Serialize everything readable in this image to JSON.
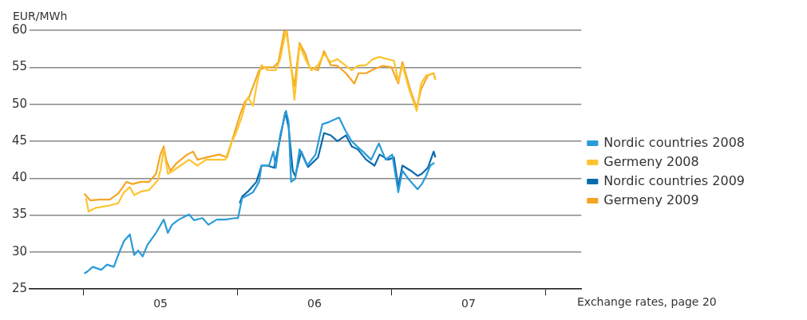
{
  "chart_data": {
    "type": "line",
    "ylabel": "EUR/MWh",
    "xlim": [
      4.15,
      7.733
    ],
    "ylim": [
      25,
      60
    ],
    "xticks": [
      {
        "value": 4.5,
        "label": null
      },
      {
        "value": 5,
        "label": "05"
      },
      {
        "value": 5.5,
        "label": null
      },
      {
        "value": 6,
        "label": "06"
      },
      {
        "value": 6.5,
        "label": null
      },
      {
        "value": 7,
        "label": "07"
      },
      {
        "value": 7.5,
        "label": null
      }
    ],
    "yticks": [
      25,
      30,
      35,
      40,
      45,
      50,
      55,
      60
    ],
    "grid": "y",
    "legend": "right",
    "marker": "none",
    "line_style": "solid",
    "annotations": [
      "Exchange rates, page 20"
    ],
    "series": [
      {
        "name": "Nordic countries 2008",
        "color": "#2a9bd8",
        "x": [
          4.505,
          4.527,
          4.56,
          4.615,
          4.653,
          4.697,
          4.725,
          4.763,
          4.801,
          4.829,
          4.856,
          4.884,
          4.916,
          4.971,
          5.021,
          5.048,
          5.075,
          5.119,
          5.185,
          5.218,
          5.273,
          5.311,
          5.366,
          5.421,
          5.486,
          5.503,
          5.53,
          5.568,
          5.601,
          5.64,
          5.656,
          5.705,
          5.733,
          5.749,
          5.777,
          5.815,
          5.832,
          5.848,
          5.875,
          5.903,
          5.952,
          6.007,
          6.051,
          6.095,
          6.16,
          6.199,
          6.242,
          6.297,
          6.314,
          6.368,
          6.418,
          6.462,
          6.505,
          6.544,
          6.571,
          6.61,
          6.67,
          6.697,
          6.725,
          6.752,
          6.779
        ],
        "values": [
          27.1,
          27.4,
          28.0,
          27.6,
          28.3,
          28.0,
          29.6,
          31.5,
          32.4,
          29.6,
          30.2,
          29.4,
          31.0,
          32.6,
          34.4,
          32.6,
          33.7,
          34.4,
          35.1,
          34.3,
          34.6,
          33.7,
          34.4,
          34.4,
          34.6,
          34.6,
          37.3,
          37.7,
          38.1,
          39.5,
          41.7,
          41.7,
          43.6,
          41.4,
          45.8,
          49.1,
          47.6,
          39.5,
          39.9,
          43.9,
          41.7,
          43.2,
          47.3,
          47.6,
          48.2,
          46.5,
          45.0,
          43.9,
          43.6,
          42.5,
          44.7,
          42.5,
          43.2,
          38.1,
          41.0,
          39.9,
          38.5,
          39.2,
          40.3,
          41.7,
          42.1
        ]
      },
      {
        "name": "Germeny 2008",
        "color": "#fcc530",
        "x": [
          4.516,
          4.533,
          4.582,
          4.67,
          4.725,
          4.763,
          4.801,
          4.829,
          4.873,
          4.927,
          4.982,
          4.999,
          5.021,
          5.048,
          5.081,
          5.13,
          5.185,
          5.24,
          5.295,
          5.366,
          5.421,
          5.459,
          5.492,
          5.53,
          5.558,
          5.568,
          5.601,
          5.629,
          5.656,
          5.695,
          5.749,
          5.777,
          5.815,
          5.842,
          5.87,
          5.903,
          5.941,
          5.979,
          6.023,
          6.062,
          6.105,
          6.149,
          6.199,
          6.242,
          6.281,
          6.336,
          6.379,
          6.423,
          6.473,
          6.516,
          6.544,
          6.571,
          6.615,
          6.664,
          6.692,
          6.725,
          6.774,
          6.785
        ],
        "values": [
          37.3,
          35.5,
          36.0,
          36.3,
          36.6,
          38.1,
          38.8,
          37.7,
          38.2,
          38.4,
          39.7,
          41.0,
          43.9,
          40.6,
          41.0,
          41.7,
          42.5,
          41.7,
          42.5,
          42.5,
          42.5,
          44.7,
          46.2,
          48.4,
          50.6,
          50.9,
          49.8,
          53.1,
          55.3,
          54.6,
          54.6,
          56.1,
          60.0,
          56.4,
          50.6,
          58.0,
          56.1,
          54.6,
          55.3,
          56.8,
          55.7,
          56.1,
          55.3,
          54.6,
          55.2,
          55.3,
          56.1,
          56.4,
          56.1,
          55.9,
          53.1,
          55.3,
          52.0,
          49.1,
          52.8,
          53.9,
          54.2,
          53.3
        ]
      },
      {
        "name": "Nordic countries 2009",
        "color": "#0a6aae",
        "x": [
          5.514,
          5.53,
          5.568,
          5.623,
          5.656,
          5.695,
          5.738,
          5.777,
          5.81,
          5.832,
          5.859,
          5.875,
          5.914,
          5.958,
          6.023,
          6.062,
          6.105,
          6.149,
          6.204,
          6.242,
          6.281,
          6.336,
          6.39,
          6.423,
          6.478,
          6.516,
          6.544,
          6.571,
          6.626,
          6.67,
          6.697,
          6.736,
          6.774,
          6.785
        ],
        "values": [
          36.6,
          37.5,
          38.2,
          39.5,
          41.7,
          41.7,
          41.4,
          45.4,
          48.9,
          46.9,
          41.0,
          40.3,
          43.6,
          41.5,
          42.8,
          46.1,
          45.8,
          45.0,
          45.8,
          44.3,
          43.9,
          42.5,
          41.7,
          43.2,
          42.5,
          42.8,
          38.8,
          41.7,
          41.0,
          40.3,
          40.6,
          41.4,
          43.6,
          42.8
        ]
      },
      {
        "name": "Germeny 2009",
        "color": "#f5a524",
        "x": [
          4.505,
          4.544,
          4.599,
          4.67,
          4.725,
          4.779,
          4.818,
          4.873,
          4.927,
          4.971,
          4.999,
          5.021,
          5.037,
          5.064,
          5.108,
          5.174,
          5.212,
          5.24,
          5.295,
          5.382,
          5.432,
          5.464,
          5.514,
          5.547,
          5.574,
          5.64,
          5.678,
          5.733,
          5.766,
          5.804,
          5.821,
          5.848,
          5.87,
          5.903,
          5.941,
          5.968,
          6.023,
          6.062,
          6.105,
          6.149,
          6.204,
          6.259,
          6.286,
          6.336,
          6.39,
          6.445,
          6.5,
          6.544,
          6.571,
          6.626,
          6.664,
          6.692,
          6.736,
          6.774,
          6.785
        ],
        "values": [
          37.9,
          37.0,
          37.1,
          37.1,
          37.9,
          39.5,
          39.2,
          39.5,
          39.5,
          40.6,
          43.2,
          44.3,
          42.5,
          41.0,
          42.1,
          43.2,
          43.6,
          42.5,
          42.8,
          43.2,
          42.8,
          45.0,
          48.4,
          50.3,
          50.9,
          54.6,
          55.0,
          55.0,
          55.7,
          60.0,
          59.8,
          55.0,
          52.4,
          58.3,
          56.8,
          55.0,
          54.6,
          57.2,
          55.3,
          55.2,
          54.2,
          52.8,
          54.2,
          54.2,
          54.8,
          55.2,
          55.0,
          52.8,
          55.7,
          51.7,
          49.5,
          52.0,
          53.9,
          54.2,
          53.3
        ]
      }
    ]
  }
}
